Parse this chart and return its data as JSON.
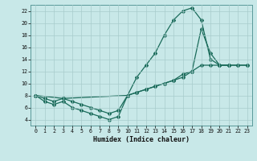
{
  "xlabel": "Humidex (Indice chaleur)",
  "bg_color": "#c8e8e8",
  "line_color": "#1a6b5a",
  "grid_color": "#a8cccc",
  "xlim": [
    -0.5,
    23.5
  ],
  "ylim": [
    3,
    23
  ],
  "xticks": [
    0,
    1,
    2,
    3,
    4,
    5,
    6,
    7,
    8,
    9,
    10,
    11,
    12,
    13,
    14,
    15,
    16,
    17,
    18,
    19,
    20,
    21,
    22,
    23
  ],
  "yticks": [
    4,
    6,
    8,
    10,
    12,
    14,
    16,
    18,
    20,
    22
  ],
  "line1_x": [
    0,
    1,
    2,
    3,
    4,
    5,
    6,
    7,
    8,
    9,
    10,
    11,
    12,
    13,
    14,
    15,
    16,
    17,
    18,
    19,
    20,
    21
  ],
  "line1_y": [
    8,
    7,
    6.5,
    7,
    6,
    5.5,
    5,
    4.5,
    4,
    4.5,
    8,
    11,
    13,
    15,
    18,
    20.5,
    22,
    22.5,
    20.5,
    14,
    13,
    13
  ],
  "line2_x": [
    0,
    1,
    2,
    3,
    4,
    5,
    6,
    7,
    8,
    9,
    10,
    11,
    12,
    13,
    14,
    15,
    16,
    17,
    18,
    19,
    20,
    21,
    22,
    23
  ],
  "line2_y": [
    8,
    7.5,
    7,
    7.5,
    7,
    6.5,
    6,
    5.5,
    5,
    5.5,
    8,
    8.5,
    9,
    9.5,
    10,
    10.5,
    11,
    12,
    13,
    13,
    13,
    13,
    13,
    13
  ],
  "line3_x": [
    0,
    3,
    10,
    11,
    12,
    13,
    14,
    15,
    16,
    17,
    18,
    19,
    20,
    21,
    22,
    23
  ],
  "line3_y": [
    8,
    7.5,
    8,
    8.5,
    9,
    9.5,
    10,
    10.5,
    11.5,
    12,
    19,
    15,
    13,
    13,
    13,
    13
  ]
}
